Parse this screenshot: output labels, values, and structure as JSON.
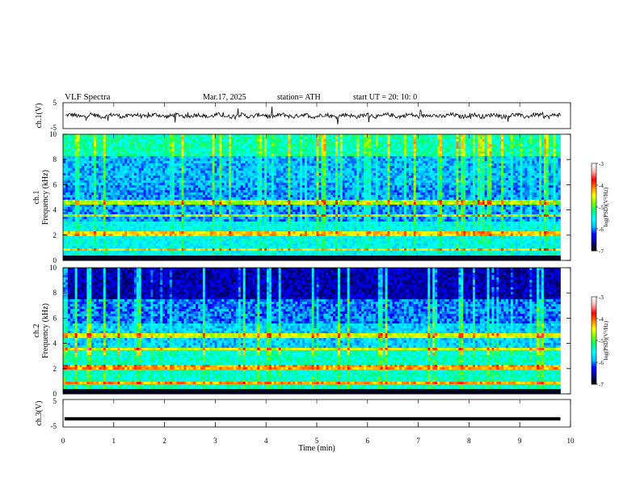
{
  "header": {
    "title": "VLF  Spectra",
    "date": "Mar.17, 2025",
    "station": "station= ATH",
    "start_ut": "start  UT  =   20: 10: 0"
  },
  "chart_data": [
    {
      "type": "line",
      "name": "ch1-waveform",
      "ylabel": "ch.1(V)",
      "ylim": [
        -5,
        5
      ],
      "yticks": [
        "5",
        "-5"
      ],
      "xlim": [
        0,
        10
      ],
      "description_level": 0
    },
    {
      "type": "heatmap",
      "name": "ch1-spectrogram",
      "ylabel_lines": [
        "ch.1",
        "Frequency  (kHz)"
      ],
      "ylim": [
        0,
        10
      ],
      "yticks": [
        "0",
        "2",
        "4",
        "6",
        "8",
        "10"
      ],
      "data_xlim": [
        0,
        9.8
      ],
      "strong_lines_khz": [
        0.3,
        0.8,
        2.1,
        2.2,
        3.5,
        4.6
      ],
      "colorbar": {
        "label": "log(PSD)(V²/Hz)",
        "range": [
          -7,
          -3
        ],
        "ticks": [
          "-3",
          "-4",
          "-5",
          "-6",
          "-7"
        ],
        "colors": [
          "#000000",
          "#00008b",
          "#0000ff",
          "#00bfff",
          "#00ffff",
          "#00ff80",
          "#80ff00",
          "#ffff00",
          "#ff8000",
          "#ff0000",
          "#ffb0b0",
          "#ffffff"
        ]
      }
    },
    {
      "type": "heatmap",
      "name": "ch2-spectrogram",
      "ylabel_lines": [
        "ch.2",
        "Frequency  (kHz)"
      ],
      "ylim": [
        0,
        10
      ],
      "yticks": [
        "0",
        "2",
        "4",
        "6",
        "8",
        "10"
      ],
      "data_xlim": [
        0,
        9.8
      ],
      "strong_lines_khz": [
        0.3,
        0.9,
        2.0,
        2.2,
        3.5,
        4.6
      ],
      "colorbar": {
        "label": "log(PSD)(V²/Hz)",
        "range": [
          -7,
          -3
        ],
        "ticks": [
          "-3",
          "-4",
          "-5",
          "-6",
          "-7"
        ]
      }
    },
    {
      "type": "line",
      "name": "ch3-waveform",
      "ylabel": "ch.3(V)",
      "ylim": [
        -5,
        5
      ],
      "yticks": [
        "5",
        "-5"
      ],
      "constant_value": -2.0
    }
  ],
  "xaxis": {
    "label": "Time  (min)",
    "ticks": [
      "0",
      "1",
      "2",
      "3",
      "4",
      "5",
      "6",
      "7",
      "8",
      "9",
      "10"
    ],
    "range": [
      0,
      10
    ]
  }
}
